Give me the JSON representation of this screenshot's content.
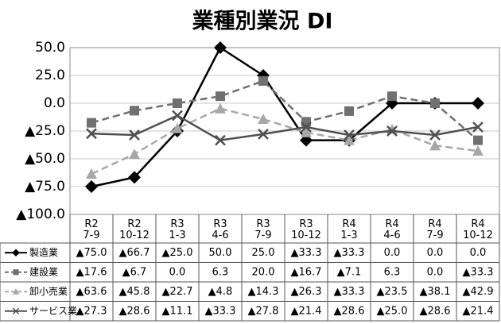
{
  "chart_data": {
    "type": "line",
    "title": "業種別業況 DI",
    "categories": [
      [
        "R2",
        "7-9"
      ],
      [
        "R2",
        "10-12"
      ],
      [
        "R3",
        "1-3"
      ],
      [
        "R3",
        "4-6"
      ],
      [
        "R3",
        "7-9"
      ],
      [
        "R3",
        "10-12"
      ],
      [
        "R4",
        "1-3"
      ],
      [
        "R4",
        "4-6"
      ],
      [
        "R4",
        "7-9"
      ],
      [
        "R4",
        "10-12"
      ]
    ],
    "ylim": [
      -100,
      50
    ],
    "yticks": [
      {
        "value": 50,
        "label": "50.0"
      },
      {
        "value": 25,
        "label": "25.0"
      },
      {
        "value": 0,
        "label": "0.0"
      },
      {
        "value": -25,
        "label": "▲25.0"
      },
      {
        "value": -50,
        "label": "▲50.0"
      },
      {
        "value": -75,
        "label": "▲75.0"
      },
      {
        "value": -100,
        "label": "▲100.0"
      }
    ],
    "grid": true,
    "series": [
      {
        "name": "製造業",
        "color": "#000000",
        "marker": "diamond",
        "dashed": false,
        "values": [
          -75,
          -66.7,
          -25,
          50,
          25,
          -33.3,
          -33.3,
          0,
          0,
          0
        ],
        "value_labels": [
          "▲75.0",
          "▲66.7",
          "▲25.0",
          "50.0",
          "25.0",
          "▲33.3",
          "▲33.3",
          "0.0",
          "0.0",
          "0.0"
        ]
      },
      {
        "name": "建設業",
        "color": "#707070",
        "marker": "square",
        "dashed": true,
        "values": [
          -17.6,
          -6.7,
          0,
          6.3,
          20,
          -16.7,
          -7.1,
          6.3,
          0,
          -33.3
        ],
        "value_labels": [
          "▲17.6",
          "▲6.7",
          "0.0",
          "6.3",
          "20.0",
          "▲16.7",
          "▲7.1",
          "6.3",
          "0.0",
          "▲33.3"
        ]
      },
      {
        "name": "卸小売業",
        "color": "#a8a8a8",
        "marker": "triangle",
        "dashed": true,
        "values": [
          -63.6,
          -45.8,
          -22.7,
          -4.8,
          -14.3,
          -26.3,
          -33.3,
          -23.5,
          -38.1,
          -42.9
        ],
        "value_labels": [
          "▲63.6",
          "▲45.8",
          "▲22.7",
          "▲4.8",
          "▲14.3",
          "▲26.3",
          "▲33.3",
          "▲23.5",
          "▲38.1",
          "▲42.9"
        ]
      },
      {
        "name": "サービス業",
        "color": "#505050",
        "marker": "x",
        "dashed": false,
        "values": [
          -27.3,
          -28.6,
          -11.1,
          -33.3,
          -27.8,
          -21.4,
          -28.6,
          -25.0,
          -28.6,
          -21.4
        ],
        "value_labels": [
          "▲27.3",
          "▲28.6",
          "▲11.1",
          "▲33.3",
          "▲27.8",
          "▲21.4",
          "▲28.6",
          "▲25.0",
          "▲28.6",
          "▲21.4"
        ]
      }
    ]
  }
}
